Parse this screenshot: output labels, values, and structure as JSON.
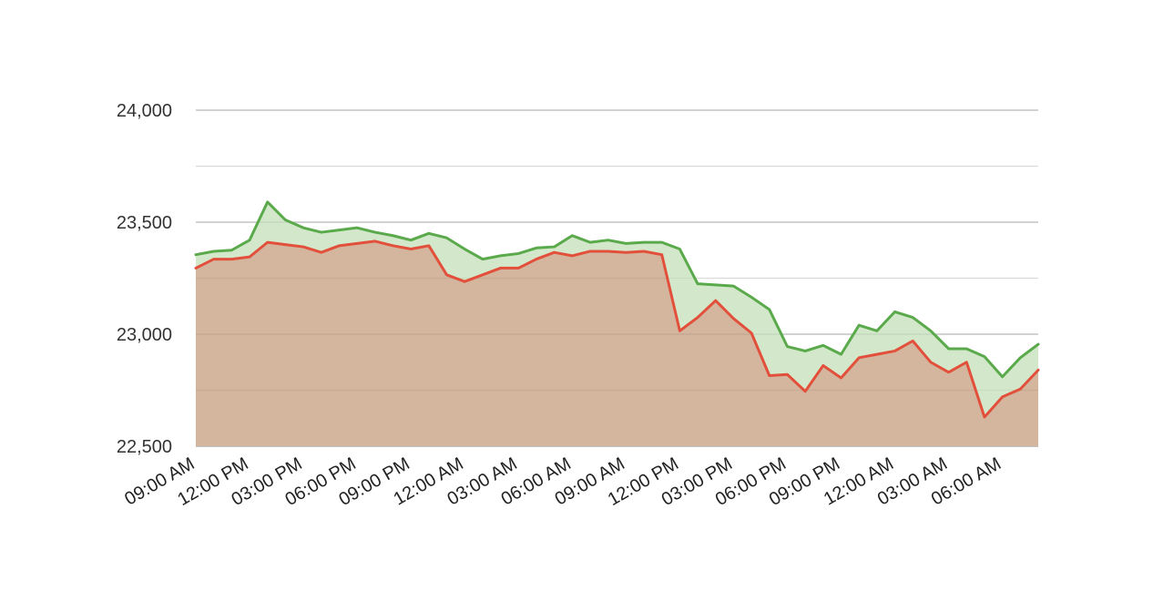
{
  "chart_data": {
    "type": "area",
    "title": "",
    "xlabel": "",
    "ylabel": "",
    "ylim": [
      22500,
      24000
    ],
    "y_ticks": [
      22500,
      23000,
      23500,
      24000
    ],
    "y_tick_labels": [
      "22,500",
      "23,000",
      "23,500",
      "24,000"
    ],
    "x_tick_labels": [
      "09:00 AM",
      "12:00 PM",
      "03:00 PM",
      "06:00 PM",
      "09:00 PM",
      "12:00 AM",
      "03:00 AM",
      "06:00 AM",
      "09:00 AM",
      "12:00 PM",
      "03:00 PM",
      "06:00 PM",
      "09:00 PM",
      "12:00 AM",
      "03:00 AM",
      "06:00 AM"
    ],
    "x_tick_positions": [
      0,
      3,
      6,
      9,
      12,
      15,
      18,
      21,
      24,
      27,
      30,
      33,
      36,
      39,
      42,
      45
    ],
    "grid": true,
    "legend": "none",
    "series": [
      {
        "color": "#5aaa4c",
        "fill": "#d3e8cb",
        "values": [
          23355,
          23370,
          23375,
          23420,
          23590,
          23510,
          23475,
          23455,
          23465,
          23475,
          23455,
          23440,
          23420,
          23450,
          23430,
          23380,
          23335,
          23350,
          23360,
          23385,
          23390,
          23440,
          23410,
          23420,
          23405,
          23410,
          23410,
          23380,
          23225,
          23220,
          23215,
          23165,
          23110,
          22945,
          22925,
          22950,
          22910,
          23040,
          23015,
          23100,
          23075,
          23015,
          22935,
          22935,
          22900,
          22810,
          22895,
          22955
        ]
      },
      {
        "color": "#e2503c",
        "fill": "#d4b59e",
        "values": [
          23295,
          23335,
          23335,
          23345,
          23410,
          23400,
          23390,
          23365,
          23395,
          23405,
          23415,
          23395,
          23380,
          23395,
          23265,
          23235,
          23265,
          23295,
          23295,
          23335,
          23365,
          23350,
          23370,
          23370,
          23365,
          23370,
          23355,
          23015,
          23075,
          23150,
          23070,
          23005,
          22815,
          22820,
          22745,
          22860,
          22805,
          22895,
          22910,
          22925,
          22970,
          22875,
          22830,
          22875,
          22630,
          22720,
          22755,
          22840
        ]
      }
    ]
  }
}
